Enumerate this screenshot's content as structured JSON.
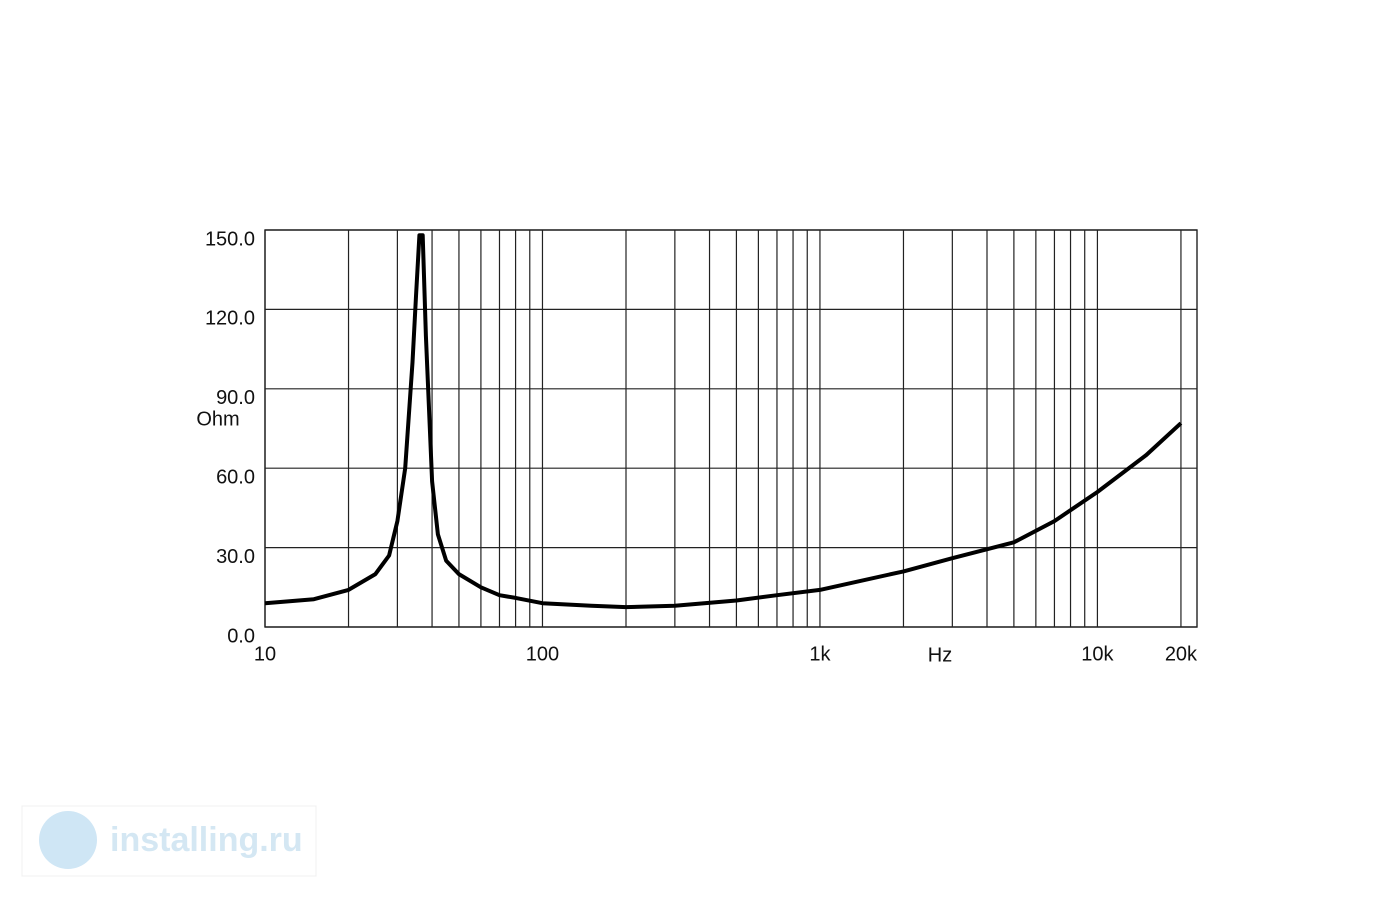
{
  "chart_data": {
    "type": "line",
    "y_label": "Ohm",
    "x_label": "Hz",
    "x": [
      10,
      15,
      20,
      25,
      28,
      30,
      32,
      34,
      35,
      36,
      37,
      38,
      40,
      42,
      45,
      50,
      60,
      70,
      80,
      100,
      150,
      200,
      300,
      500,
      700,
      1000,
      2000,
      3000,
      5000,
      7000,
      10000,
      15000,
      20000
    ],
    "values": [
      9,
      10.5,
      14,
      20,
      27,
      40,
      60,
      100,
      125,
      148,
      148,
      110,
      55,
      35,
      25,
      20,
      15,
      12,
      11,
      9,
      8,
      7.5,
      8,
      10,
      12,
      14,
      21,
      26,
      32,
      40,
      51,
      65,
      77
    ],
    "color": "#000000",
    "xscale": "log",
    "xlim": [
      10,
      22850
    ],
    "ylim": [
      0,
      150
    ],
    "xticks": [
      {
        "value": 10,
        "label": "10"
      },
      {
        "value": 100,
        "label": "100"
      },
      {
        "value": 1000,
        "label": "1k"
      },
      {
        "value": 10000,
        "label": "10k"
      },
      {
        "value": 20000,
        "label": "20k"
      }
    ],
    "xminor": [
      20,
      30,
      40,
      50,
      60,
      70,
      80,
      90,
      200,
      300,
      400,
      500,
      600,
      700,
      800,
      900,
      2000,
      3000,
      4000,
      5000,
      6000,
      7000,
      8000,
      9000
    ],
    "yticks": [
      {
        "value": 0,
        "label": "0.0"
      },
      {
        "value": 30,
        "label": "30.0"
      },
      {
        "value": 60,
        "label": "60.0"
      },
      {
        "value": 90,
        "label": "90.0"
      },
      {
        "value": 120,
        "label": "120.0"
      },
      {
        "value": 150,
        "label": "150.0"
      }
    ],
    "grid": true
  },
  "watermark": "installing.ru"
}
